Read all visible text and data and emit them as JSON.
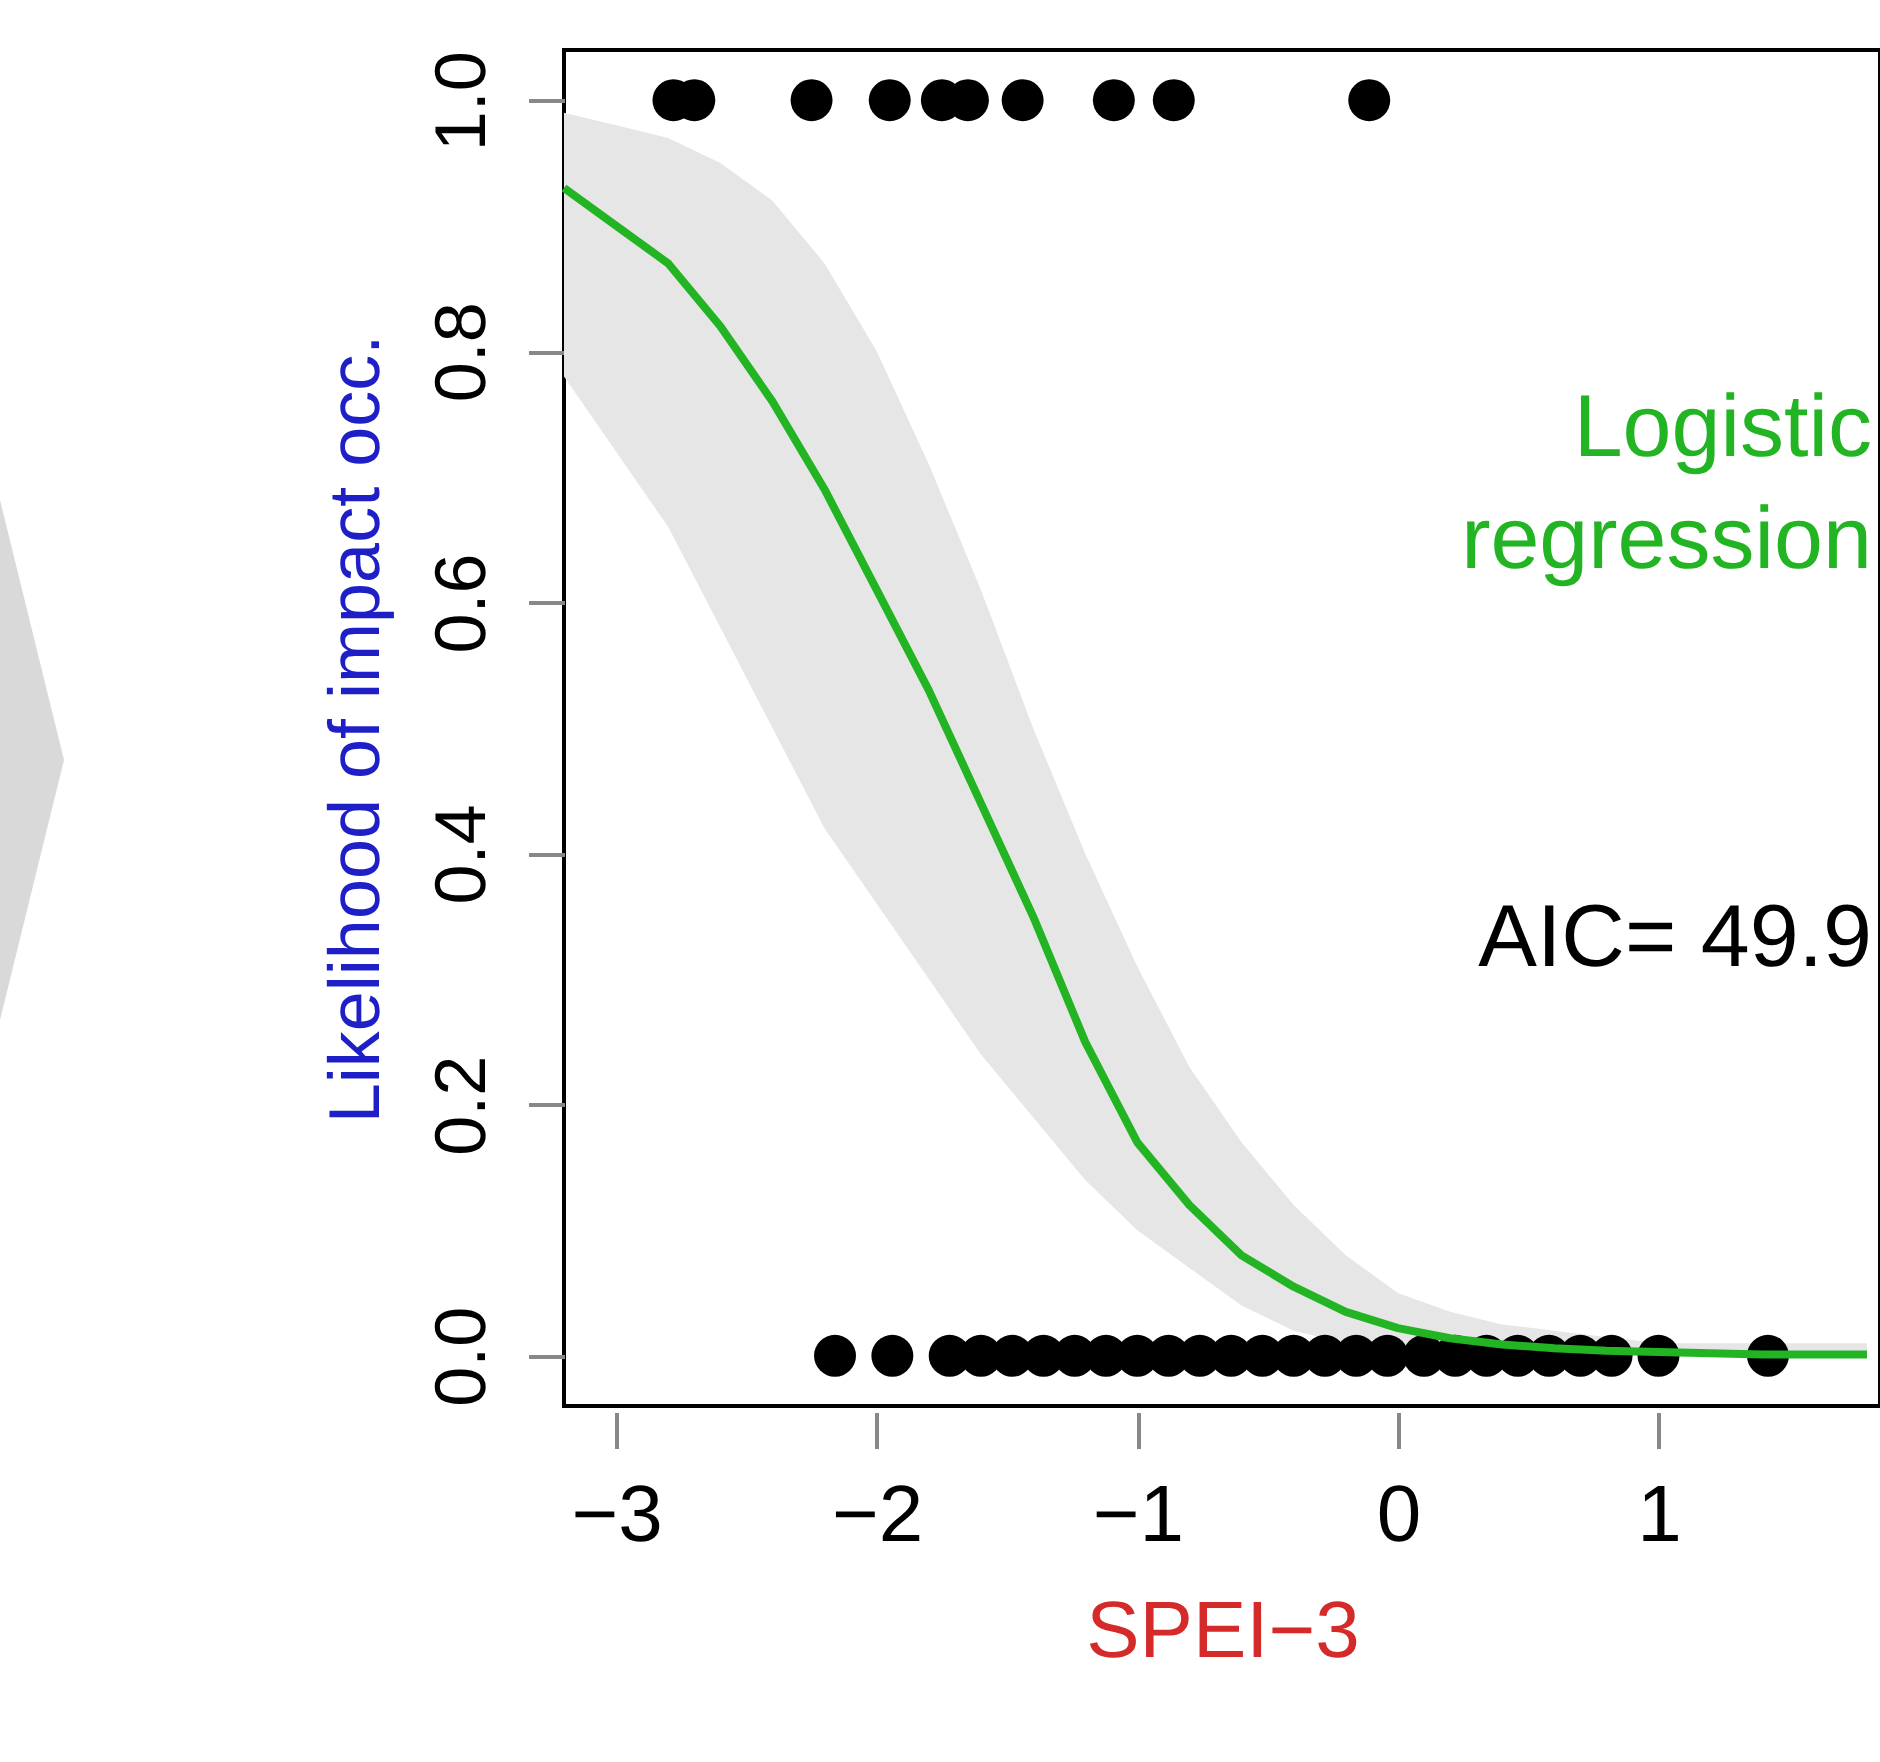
{
  "chart_data": {
    "type": "scatter",
    "xlabel": "SPEI−3",
    "ylabel": "Likelihood of impact occ.",
    "annotations": [
      "Logistic regression",
      "AIC= 49.9"
    ],
    "xlim": [
      -3.2,
      1.85
    ],
    "ylim": [
      -0.04,
      1.04
    ],
    "xticks": [
      {
        "value": -3,
        "label": "−3"
      },
      {
        "value": -2,
        "label": "−2"
      },
      {
        "value": -1,
        "label": "−1"
      },
      {
        "value": 0,
        "label": "0"
      },
      {
        "value": 1,
        "label": "1"
      }
    ],
    "yticks": [
      {
        "value": 0,
        "label": "0.0"
      },
      {
        "value": 0.2,
        "label": "0.2"
      },
      {
        "value": 0.4,
        "label": "0.4"
      },
      {
        "value": 0.6,
        "label": "0.6"
      },
      {
        "value": 0.8,
        "label": "0.8"
      },
      {
        "value": 1,
        "label": "1.0"
      }
    ],
    "grid": false,
    "series": [
      {
        "color": "#000000",
        "marker": "circle",
        "x": [
          -2.78,
          -2.7,
          -2.25,
          -1.95,
          -1.75,
          -1.65,
          -1.44,
          -1.09,
          -0.86,
          -0.11,
          -2.16,
          -1.94,
          -1.72,
          -1.6,
          -1.48,
          -1.36,
          -1.24,
          -1.12,
          -1.0,
          -0.88,
          -0.76,
          -0.64,
          -0.52,
          -0.4,
          -0.28,
          -0.16,
          -0.04,
          0.1,
          0.22,
          0.34,
          0.46,
          0.58,
          0.7,
          0.82,
          1.0,
          1.42
        ],
        "values": [
          1,
          1,
          1,
          1,
          1,
          1,
          1,
          1,
          1,
          1,
          0,
          0,
          0,
          0,
          0,
          0,
          0,
          0,
          0,
          0,
          0,
          0,
          0,
          0,
          0,
          0,
          0,
          0,
          0,
          0,
          0,
          0,
          0,
          0,
          0,
          0
        ]
      },
      {
        "type": "line",
        "color": "#22b422",
        "line_style": "solid",
        "x": [
          -3.2,
          -3.0,
          -2.8,
          -2.6,
          -2.4,
          -2.2,
          -2.0,
          -1.8,
          -1.6,
          -1.4,
          -1.2,
          -1.0,
          -0.8,
          -0.6,
          -0.4,
          -0.2,
          0,
          0.2,
          0.4,
          0.6,
          0.8,
          1.0,
          1.2,
          1.4,
          1.6,
          1.8
        ],
        "values": [
          0.93,
          0.9,
          0.87,
          0.82,
          0.76,
          0.69,
          0.61,
          0.53,
          0.44,
          0.35,
          0.25,
          0.17,
          0.12,
          0.08,
          0.055,
          0.035,
          0.022,
          0.014,
          0.009,
          0.006,
          0.004,
          0.003,
          0.002,
          0.001,
          0.001,
          0.001
        ],
        "upper": [
          0.99,
          0.98,
          0.97,
          0.95,
          0.92,
          0.87,
          0.8,
          0.71,
          0.61,
          0.5,
          0.4,
          0.31,
          0.23,
          0.17,
          0.12,
          0.08,
          0.05,
          0.035,
          0.025,
          0.02,
          0.015,
          0.01,
          0.01,
          0.01,
          0.01,
          0.01
        ],
        "lower": [
          0.78,
          0.72,
          0.66,
          0.58,
          0.5,
          0.42,
          0.36,
          0.3,
          0.24,
          0.19,
          0.14,
          0.1,
          0.07,
          0.04,
          0.02,
          0.01,
          0.005,
          0.003,
          0.002,
          0,
          0,
          0,
          0,
          0,
          0,
          0
        ]
      }
    ]
  }
}
